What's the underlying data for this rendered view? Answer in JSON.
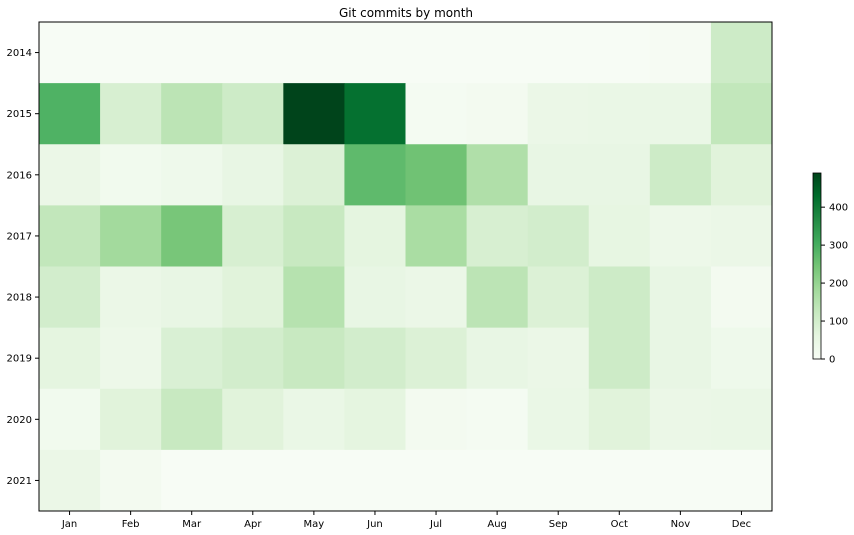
{
  "chart_data": {
    "type": "heatmap",
    "title": "Git commits by month",
    "xlabel": "",
    "ylabel": "",
    "x_categories": [
      "Jan",
      "Feb",
      "Mar",
      "Apr",
      "May",
      "Jun",
      "Jul",
      "Aug",
      "Sep",
      "Oct",
      "Nov",
      "Dec"
    ],
    "y_categories": [
      "2014",
      "2015",
      "2016",
      "2017",
      "2018",
      "2019",
      "2020",
      "2021"
    ],
    "values": [
      [
        0,
        0,
        0,
        0,
        0,
        0,
        0,
        0,
        0,
        0,
        5,
        110
      ],
      [
        290,
        90,
        140,
        110,
        490,
        420,
        10,
        15,
        40,
        45,
        45,
        130
      ],
      [
        40,
        20,
        30,
        50,
        80,
        270,
        250,
        160,
        50,
        50,
        110,
        70
      ],
      [
        130,
        180,
        240,
        90,
        120,
        60,
        170,
        90,
        100,
        55,
        35,
        40
      ],
      [
        100,
        40,
        50,
        70,
        150,
        50,
        40,
        140,
        80,
        110,
        50,
        15
      ],
      [
        60,
        35,
        85,
        100,
        120,
        100,
        80,
        50,
        40,
        110,
        50,
        30
      ],
      [
        20,
        70,
        120,
        70,
        45,
        60,
        15,
        10,
        45,
        70,
        40,
        45
      ],
      [
        40,
        15,
        0,
        0,
        0,
        0,
        0,
        0,
        0,
        0,
        0,
        0
      ]
    ],
    "colormap": "Greens",
    "colorbar": {
      "range": [
        0,
        490
      ],
      "ticks": [
        0,
        100,
        200,
        300,
        400
      ],
      "tick_labels": [
        "0",
        "100",
        "200",
        "300",
        "400"
      ]
    },
    "grid": false,
    "legend": "colorbar-right"
  }
}
